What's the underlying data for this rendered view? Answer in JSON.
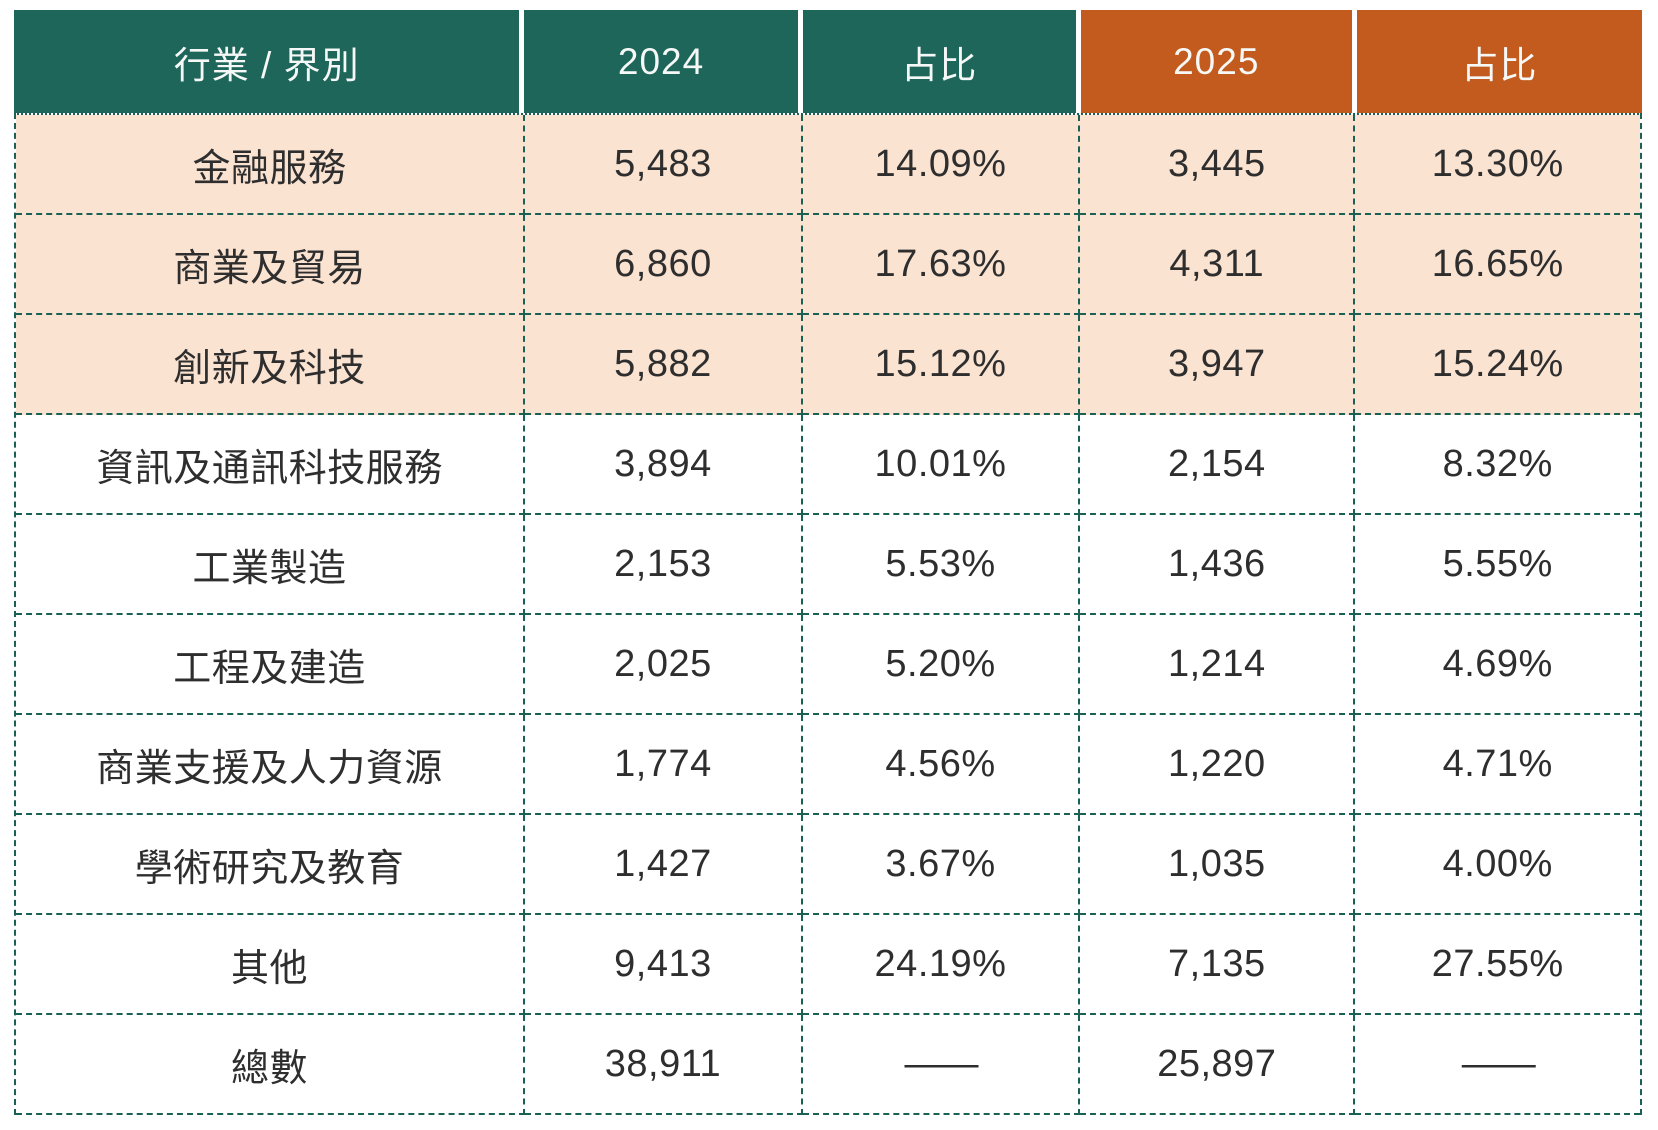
{
  "chart_data": {
    "type": "table",
    "columns": [
      "行業 / 界別",
      "2024",
      "占比",
      "2025",
      "占比"
    ],
    "rows": [
      {
        "industry": "金融服務",
        "y2024": "5,483",
        "share2024": "14.09%",
        "y2025": "3,445",
        "share2025": "13.30%",
        "highlight": true,
        "is_total": false
      },
      {
        "industry": "商業及貿易",
        "y2024": "6,860",
        "share2024": "17.63%",
        "y2025": "4,311",
        "share2025": "16.65%",
        "highlight": true,
        "is_total": false
      },
      {
        "industry": "創新及科技",
        "y2024": "5,882",
        "share2024": "15.12%",
        "y2025": "3,947",
        "share2025": "15.24%",
        "highlight": true,
        "is_total": false
      },
      {
        "industry": "資訊及通訊科技服務",
        "y2024": "3,894",
        "share2024": "10.01%",
        "y2025": "2,154",
        "share2025": "8.32%",
        "highlight": false,
        "is_total": false
      },
      {
        "industry": "工業製造",
        "y2024": "2,153",
        "share2024": "5.53%",
        "y2025": "1,436",
        "share2025": "5.55%",
        "highlight": false,
        "is_total": false
      },
      {
        "industry": "工程及建造",
        "y2024": "2,025",
        "share2024": "5.20%",
        "y2025": "1,214",
        "share2025": "4.69%",
        "highlight": false,
        "is_total": false
      },
      {
        "industry": "商業支援及人力資源",
        "y2024": "1,774",
        "share2024": "4.56%",
        "y2025": "1,220",
        "share2025": "4.71%",
        "highlight": false,
        "is_total": false
      },
      {
        "industry": "學術研究及教育",
        "y2024": "1,427",
        "share2024": "3.67%",
        "y2025": "1,035",
        "share2025": "4.00%",
        "highlight": false,
        "is_total": false
      },
      {
        "industry": "其他",
        "y2024": "9,413",
        "share2024": "24.19%",
        "y2025": "7,135",
        "share2025": "27.55%",
        "highlight": false,
        "is_total": false
      },
      {
        "industry": "總數",
        "y2024": "38,911",
        "share2024": "——",
        "y2025": "25,897",
        "share2025": "——",
        "highlight": false,
        "is_total": true
      }
    ]
  },
  "colors": {
    "teal": "#1D6659",
    "orange": "#C25B1D",
    "peach": "#FBE3D2",
    "border": "#1A6055",
    "text": "#2E2E2E",
    "header_text": "#F5F8F7"
  }
}
